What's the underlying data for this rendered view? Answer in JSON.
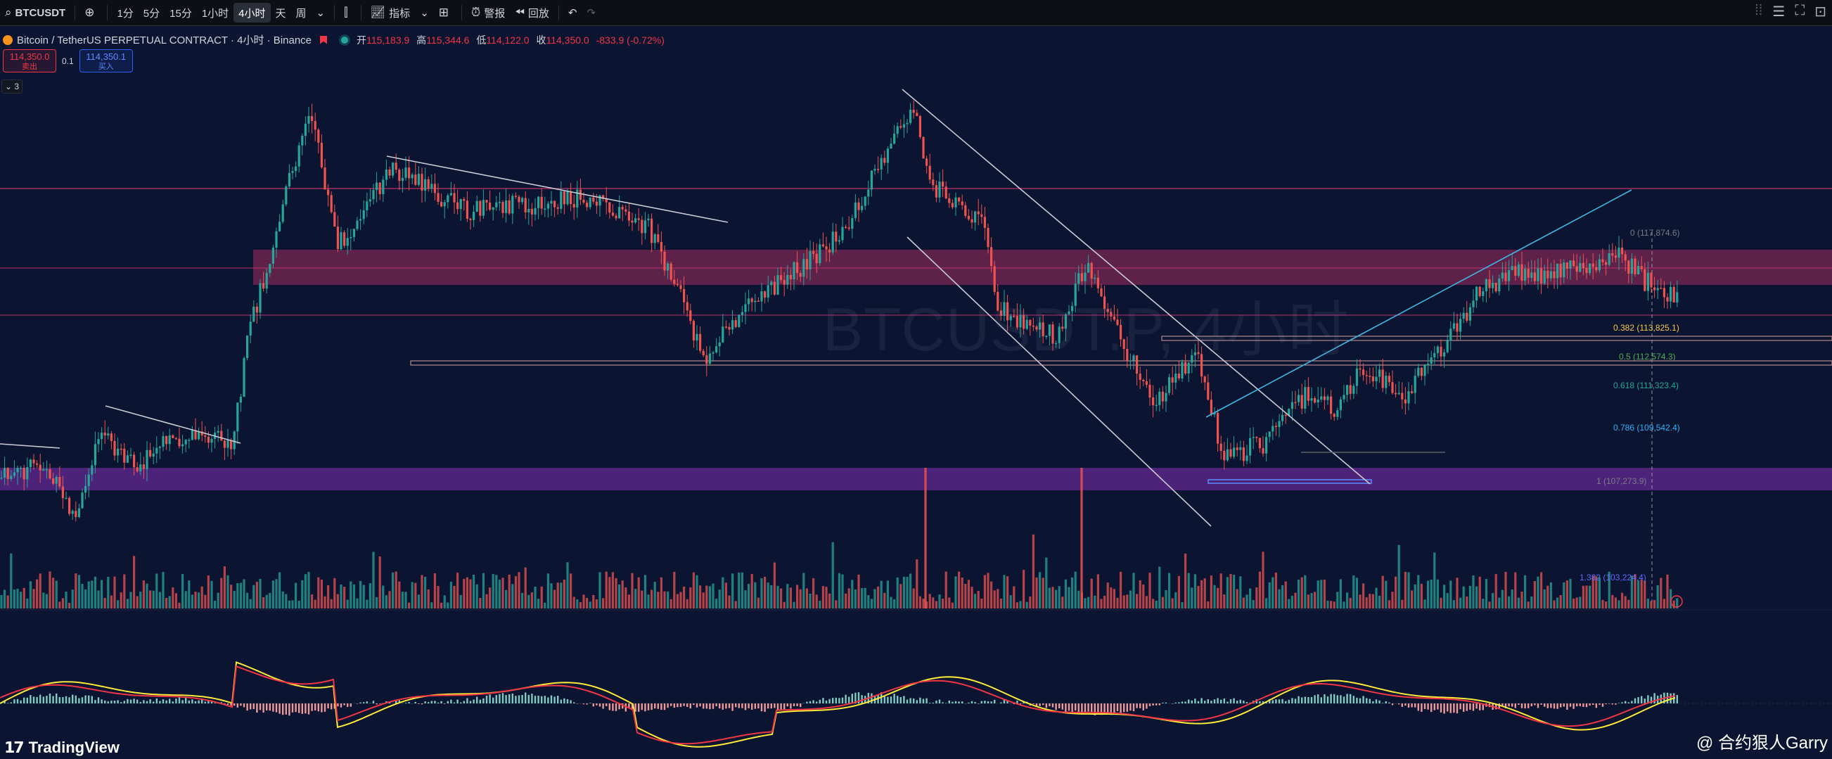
{
  "toolbar": {
    "symbol": "BTCUSDT",
    "add_icon": "plus-circle-icon",
    "intervals": [
      "1分",
      "5分",
      "15分",
      "1小时",
      "4小时",
      "天",
      "周"
    ],
    "active_interval": "4小时",
    "indicators_label": "指标",
    "alert_label": "警报",
    "replay_label": "回放"
  },
  "legend": {
    "title": "Bitcoin / TetherUS PERPETUAL CONTRACT · 4小时 · Binance",
    "open_key": "开",
    "open": "115,183.9",
    "high_key": "高",
    "high": "115,344.6",
    "low_key": "低",
    "low": "114,122.0",
    "close_key": "收",
    "close": "114,350.0",
    "change": "-833.9 (-0.72%)"
  },
  "trade": {
    "sell_price": "114,350.0",
    "sell_label": "卖出",
    "spread": "0.1",
    "buy_price": "114,350.1",
    "buy_label": "买入"
  },
  "collapse_count": "3",
  "watermark": "BTCUSDT.P, 4小时",
  "fib_levels": [
    {
      "label": "0 (117,874.6)",
      "color": "#787b86"
    },
    {
      "label": "0.382 (113,825.1)",
      "color": "#f7c948"
    },
    {
      "label": "0.5 (112,574.3)",
      "color": "#4caf50"
    },
    {
      "label": "0.618 (111,323.4)",
      "color": "#26a69a"
    },
    {
      "label": "0.786 (109,542.4)",
      "color": "#29b6f6"
    },
    {
      "label": "1 (107,273.9)",
      "color": "#787b86"
    },
    {
      "label": "1.382 (103,224.4)",
      "color": "#5b6cff"
    }
  ],
  "colors": {
    "up": "#26a69a",
    "down": "#ef5350",
    "resistance_zone": "#c0306a",
    "support_zone": "#6a2a9a",
    "channel": "#c9cbd3",
    "trendline_up": "#3fb8e6",
    "macd_fast": "#ffeb3b",
    "macd_slow": "#f23645"
  },
  "branding": {
    "logo": "TradingView",
    "author": "@ 合约狠人Garry"
  }
}
